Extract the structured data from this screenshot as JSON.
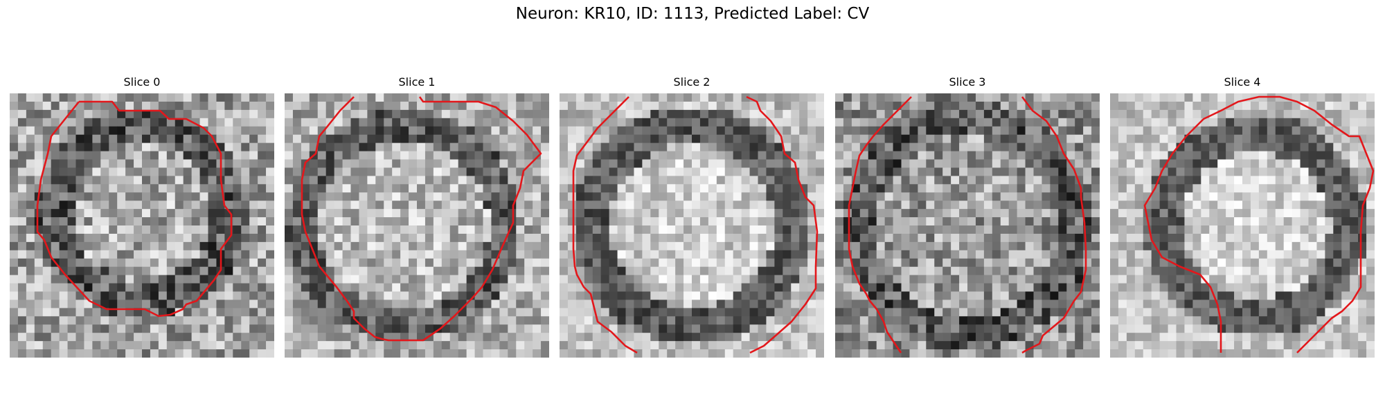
{
  "figure": {
    "title": "Neuron: KR10, ID: 1113, Predicted Label: CV"
  },
  "panels": [
    {
      "title": "Slice 0"
    },
    {
      "title": "Slice 1"
    },
    {
      "title": "Slice 2"
    },
    {
      "title": "Slice 3"
    },
    {
      "title": "Slice 4"
    }
  ],
  "colors": {
    "contour": "#e3171b",
    "background": "#ffffff",
    "image_colormap": "grayscale"
  }
}
